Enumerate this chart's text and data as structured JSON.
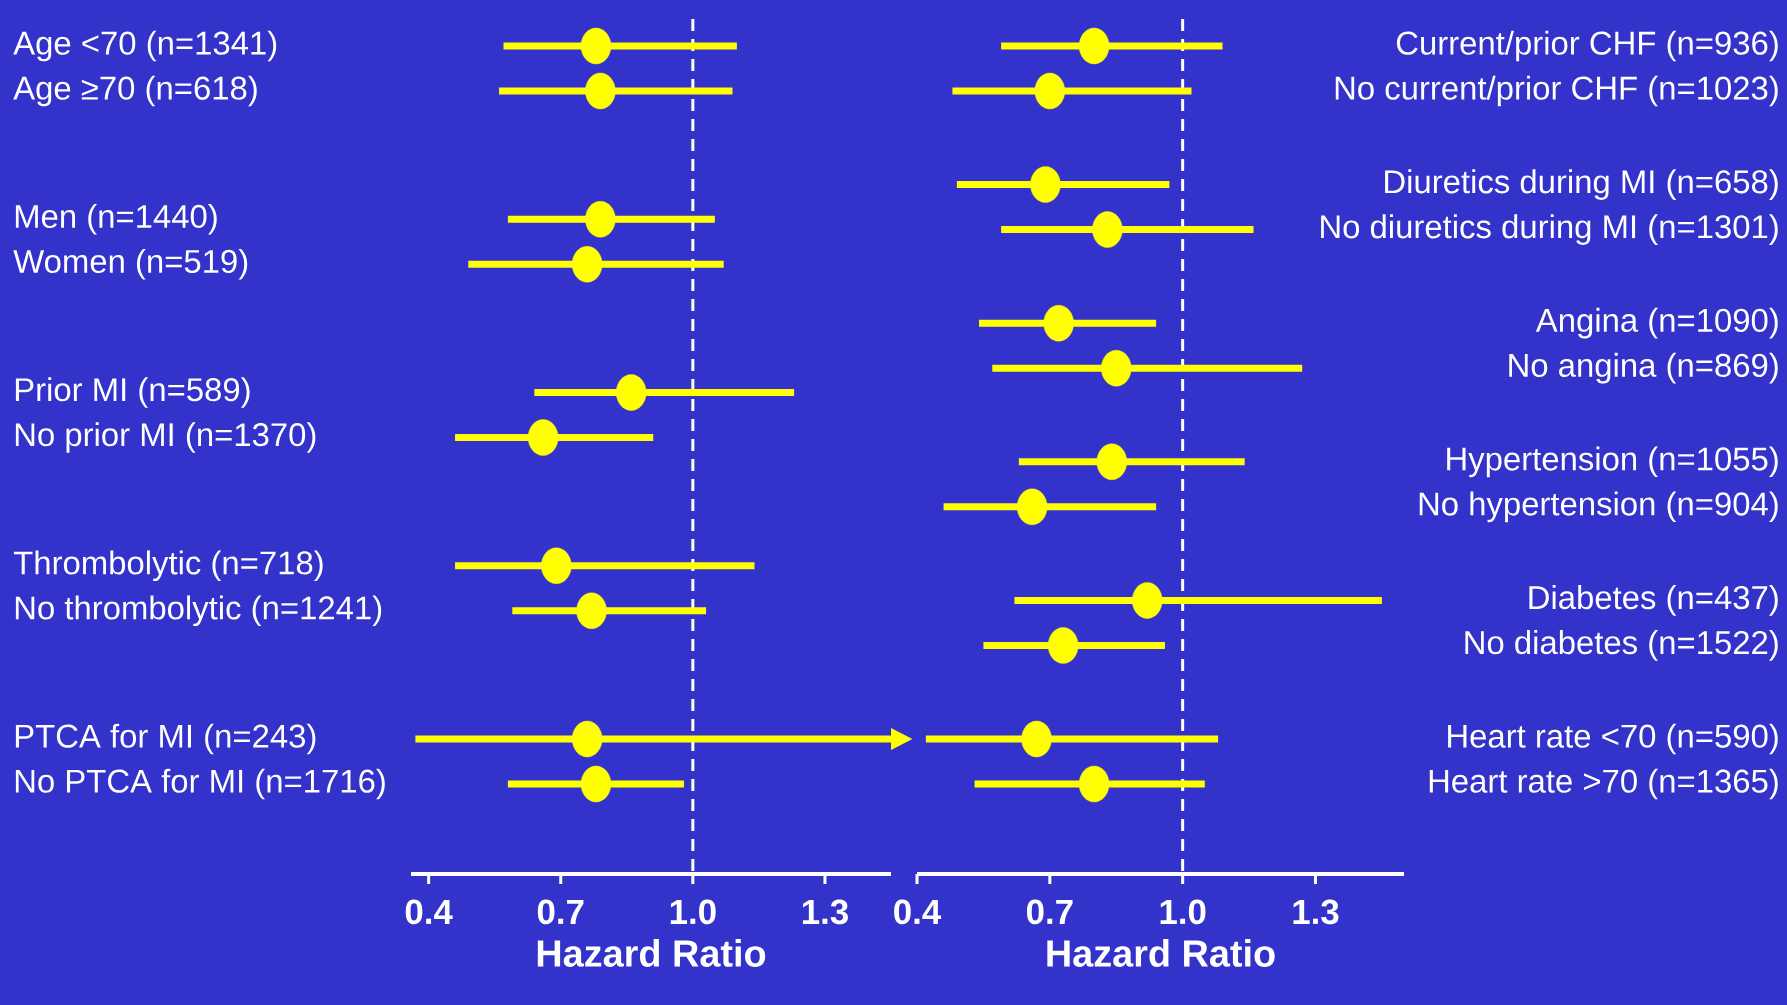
{
  "chart_data": [
    {
      "type": "scatter",
      "orientation": "horizontal",
      "color": "#ffff00",
      "marker": "circle",
      "xlabel": "Hazard Ratio",
      "categories": [
        "Age <70 (n=1341)",
        "Age ≥70 (n=618)",
        "Men (n=1440)",
        "Women (n=519)",
        "Prior MI (n=589)",
        "No prior MI (n=1370)",
        "Thrombolytic (n=718)",
        "No thrombolytic (n=1241)",
        "PTCA for MI (n=243)",
        "No PTCA for MI (n=1716)"
      ],
      "values": [
        0.78,
        0.79,
        0.79,
        0.76,
        0.86,
        0.66,
        0.69,
        0.77,
        0.76,
        0.78
      ],
      "errors": [
        [
          0.57,
          1.1
        ],
        [
          0.56,
          1.09
        ],
        [
          0.58,
          1.05
        ],
        [
          0.49,
          1.07
        ],
        [
          0.64,
          1.23
        ],
        [
          0.46,
          0.91
        ],
        [
          0.46,
          1.14
        ],
        [
          0.59,
          1.03
        ],
        [
          0.37,
          1.45
        ],
        [
          0.58,
          0.98
        ]
      ],
      "xlim": [
        0.36,
        1.45
      ],
      "xticks": [
        0.4,
        0.7,
        {
          "value": 1.0,
          "label": "1.0"
        },
        1.3
      ],
      "ref_lines": [
        {
          "axis": "x",
          "value": 1.0,
          "color": "#ffffff",
          "line_style": "dashed"
        }
      ]
    },
    {
      "type": "scatter",
      "orientation": "horizontal",
      "color": "#ffff00",
      "marker": "circle",
      "xlabel": "Hazard Ratio",
      "categories": [
        "Current/prior CHF (n=936)",
        "No current/prior CHF (n=1023)",
        "Diuretics during MI (n=658)",
        "No diuretics during MI (n=1301)",
        "Angina (n=1090)",
        "No angina (n=869)",
        "Hypertension (n=1055)",
        "No hypertension (n=904)",
        "Diabetes (n=437)",
        "No diabetes (n=1522)",
        "Heart rate <70 (n=590)",
        "Heart rate >70 (n=1365)"
      ],
      "values": [
        0.8,
        0.7,
        0.69,
        0.83,
        0.72,
        0.85,
        0.84,
        0.66,
        0.92,
        0.73,
        0.67,
        0.8
      ],
      "errors": [
        [
          0.59,
          1.09
        ],
        [
          0.48,
          1.02
        ],
        [
          0.49,
          0.97
        ],
        [
          0.59,
          1.16
        ],
        [
          0.54,
          0.94
        ],
        [
          0.57,
          1.27
        ],
        [
          0.63,
          1.14
        ],
        [
          0.46,
          0.94
        ],
        [
          0.62,
          1.45
        ],
        [
          0.55,
          0.96
        ],
        [
          0.42,
          1.08
        ],
        [
          0.53,
          1.05
        ]
      ],
      "xlim": [
        0.4,
        1.5
      ],
      "xticks": [
        0.4,
        0.7,
        {
          "value": 1.0,
          "label": "1.0"
        },
        1.3
      ],
      "ref_lines": [
        {
          "axis": "x",
          "value": 1.0,
          "color": "#ffffff",
          "line_style": "dashed"
        }
      ]
    }
  ]
}
